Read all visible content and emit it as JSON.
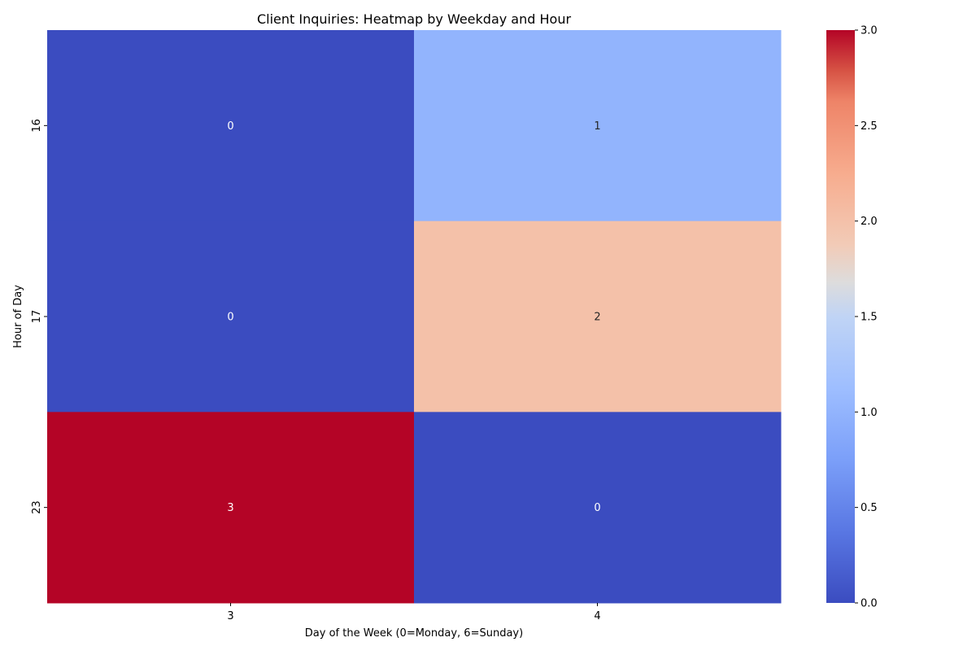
{
  "chart_data": {
    "type": "heatmap",
    "title": "Client Inquiries: Heatmap by Weekday and Hour",
    "xlabel": "Day of the Week (0=Monday, 6=Sunday)",
    "ylabel": "Hour of Day",
    "x_categories": [
      "3",
      "4"
    ],
    "y_categories": [
      "16",
      "17",
      "23"
    ],
    "values": [
      [
        0,
        1
      ],
      [
        0,
        2
      ],
      [
        3,
        0
      ]
    ],
    "annotations": true,
    "colormap": "coolwarm",
    "vmin": 0,
    "vmax": 3,
    "colorbar": {
      "ticks": [
        "0.0",
        "0.5",
        "1.0",
        "1.5",
        "2.0",
        "2.5",
        "3.0"
      ],
      "low_color": "#3b4cc0",
      "high_color": "#b40426"
    },
    "grid": false
  }
}
